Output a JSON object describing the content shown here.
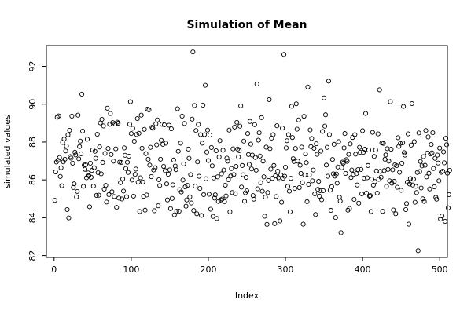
{
  "chart_data": {
    "type": "scatter",
    "title": "Simulation of Mean",
    "xlabel": "Index",
    "ylabel": "simulated values",
    "xlim": [
      -10,
      510
    ],
    "ylim": [
      81.9,
      93.1
    ],
    "x_ticks": [
      0,
      100,
      200,
      300,
      400,
      500
    ],
    "x_tick_labels": [
      "0",
      "100",
      "200",
      "300",
      "400",
      "500"
    ],
    "y_ticks": [
      82,
      84,
      86,
      88,
      90,
      92
    ],
    "y_tick_labels": [
      "82",
      "84",
      "86",
      "88",
      "90",
      "92"
    ],
    "grid": false,
    "legend": null,
    "marker": "open-circle",
    "series": [
      {
        "x_start": 1,
        "x_step": 1,
        "y": [
          84.92,
          86.42,
          86.94,
          89.31,
          87.03,
          89.38,
          87.18,
          86.18,
          86.64,
          85.69,
          87.98,
          86.95,
          88.16,
          87.09,
          87.53,
          87.79,
          84.43,
          88.38,
          83.99,
          88.62,
          87.23,
          87.15,
          89.37,
          86.88,
          85.6,
          85.79,
          87.46,
          87.32,
          85.1,
          85.39,
          89.42,
          87.11,
          87.76,
          88.05,
          87.38,
          90.53,
          88.58,
          85.66,
          86.78,
          86.56,
          86.8,
          86.11,
          88.15,
          86.37,
          86.22,
          84.58,
          86.88,
          86.14,
          86.5,
          87.58,
          85.67,
          86.64,
          87.51,
          87.14,
          85.18,
          88.41,
          86.38,
          85.19,
          87.74,
          89.01,
          86.32,
          89.2,
          86.92,
          88.85,
          85.51,
          87.4,
          85.71,
          84.83,
          89.79,
          87.66,
          85.22,
          88.94,
          89.51,
          87.34,
          85.37,
          89.03,
          86.99,
          85.12,
          88.96,
          87.64,
          84.55,
          89.05,
          88.99,
          85.04,
          86.94,
          85.85,
          86.92,
          84.99,
          86.05,
          85.41,
          87.69,
          87.3,
          86.6,
          85.11,
          86.93,
          86.39,
          87.25,
          88.94,
          90.13,
          88.45,
          85.99,
          88.73,
          85.14,
          88.04,
          86.29,
          86.57,
          88.4,
          89.24,
          85.88,
          88.46,
          84.33,
          86.11,
          89.42,
          87.67,
          85.89,
          85.13,
          88.67,
          84.4,
          87.39,
          85.2,
          89.74,
          87.09,
          89.7,
          86.78,
          87.72,
          86.17,
          88.78,
          88.73,
          86.52,
          84.37,
          86.64,
          88.96,
          87.85,
          89.17,
          84.63,
          86.01,
          85.7,
          87.09,
          88.09,
          88.94,
          87.88,
          86.71,
          88.91,
          86.49,
          87.94,
          85.79,
          84.94,
          86.3,
          88.89,
          86.53,
          84.48,
          88.7,
          85.02,
          85.74,
          87.05,
          84.15,
          86.73,
          86.54,
          84.34,
          89.76,
          87.51,
          84.34,
          85.48,
          87.94,
          85.36,
          89.37,
          85.99,
          86.84,
          88.98,
          85.63,
          84.61,
          84.94,
          85.71,
          87.63,
          87.14,
          85.1,
          86.28,
          84.78,
          89.21,
          92.76,
          84.38,
          89.93,
          85.67,
          88.61,
          84.21,
          86.95,
          88.93,
          86.19,
          85.55,
          88.39,
          84.12,
          87.94,
          89.95,
          85.22,
          88.39,
          91.0,
          86.06,
          87.47,
          88.63,
          87.02,
          85.24,
          88.37,
          84.45,
          87.71,
          86.74,
          84.07,
          86.1,
          85.04,
          85.21,
          87.54,
          83.96,
          86.16,
          84.86,
          87.21,
          88.07,
          84.94,
          86.32,
          84.99,
          87.57,
          86.52,
          84.85,
          85.72,
          85.15,
          87.15,
          86.99,
          86.01,
          88.63,
          84.31,
          86.2,
          86.6,
          85.33,
          87.64,
          86.28,
          88.79,
          85.27,
          86.71,
          89.04,
          87.63,
          87.21,
          87.55,
          88.84,
          89.91,
          85.62,
          86.76,
          86.27,
          88.05,
          84.87,
          85.32,
          86.13,
          85.42,
          88.45,
          87.34,
          86.82,
          89.09,
          87.89,
          86.58,
          87.31,
          85.17,
          84.98,
          88.92,
          87.18,
          86.51,
          91.07,
          85.53,
          88.1,
          88.49,
          87.26,
          85.85,
          89.29,
          85.4,
          86.99,
          86.16,
          84.08,
          85.09,
          87.73,
          83.65,
          85.33,
          85.97,
          90.24,
          87.65,
          86.57,
          88.21,
          86.08,
          88.39,
          86.76,
          83.69,
          86.21,
          85.12,
          88.86,
          86.46,
          86.11,
          86.04,
          83.83,
          86.26,
          84.82,
          88.74,
          86.09,
          92.63,
          86.19,
          86.67,
          87.69,
          88.07,
          85.66,
          88.39,
          85.4,
          84.31,
          86.08,
          89.89,
          88.24,
          87.12,
          86.97,
          85.55,
          87.66,
          90.02,
          88.68,
          86.99,
          89.17,
          85.59,
          86.77,
          86.34,
          87.73,
          85.85,
          83.66,
          89.36,
          86.26,
          87.37,
          86.91,
          84.85,
          90.91,
          85.76,
          86.26,
          88.64,
          87.76,
          88.19,
          85.95,
          86.52,
          87.67,
          85.26,
          84.17,
          87.91,
          87.35,
          85.5,
          85.92,
          85.14,
          85.43,
          87.52,
          84.95,
          88.56,
          85.43,
          90.33,
          88.84,
          89.44,
          86.78,
          87.72,
          86.19,
          91.22,
          88.39,
          85.46,
          84.39,
          85.64,
          87.08,
          86.32,
          87.88,
          86.2,
          84.01,
          86.31,
          85.82,
          86.68,
          88.02,
          85.09,
          84.88,
          83.21,
          86.64,
          86.94,
          86.88,
          87.69,
          88.45,
          86.34,
          87.07,
          86.98,
          84.4,
          87.35,
          84.49,
          87.9,
          86.12,
          86.52,
          88.24,
          86.29,
          84.97,
          88.39,
          87.36,
          86.33,
          85.73,
          86.54,
          84.77,
          87.72,
          87.46,
          86.55,
          85.26,
          88.6,
          87.46,
          86.09,
          87.62,
          89.51,
          85.3,
          86.11,
          86.76,
          87.58,
          85.14,
          85.17,
          84.33,
          86.04,
          88.51,
          85.72,
          87.24,
          85.91,
          87.58,
          86.47,
          85.3,
          88.43,
          86.03,
          90.76,
          86.45,
          86.14,
          87.95,
          84.34,
          87.93,
          86.49,
          87.09,
          87.32,
          85.66,
          87.65,
          86.55,
          86.99,
          85.95,
          90.13,
          87.62,
          85.82,
          86.53,
          84.41,
          85.92,
          86.8,
          84.21,
          86.75,
          85.61,
          88.23,
          87.77,
          86.4,
          87.93,
          85.45,
          86.88,
          87.96,
          89.88,
          87.44,
          87.31,
          84.43,
          84.75,
          85.88,
          88.43,
          83.66,
          85.78,
          86.07,
          87.84,
          90.03,
          85.73,
          86.04,
          88.02,
          84.82,
          85.66,
          85.33,
          86.39,
          82.26,
          88.48,
          86.44,
          86.97,
          85.57,
          86.74,
          85.0,
          87.23,
          84.86,
          86.77,
          88.61,
          86.16,
          87.42,
          88.27,
          86.35,
          85.52,
          87.37,
          87.87,
          87.43,
          88.49,
          86.6,
          85.63,
          87.14,
          85.08,
          84.98,
          87.31,
          86.89,
          85.95,
          87.68,
          83.93,
          86.4,
          84.09,
          86.46,
          87.48,
          86.9,
          83.81,
          88.2,
          87.86,
          86.35,
          84.52,
          85.22,
          86.51
        ]
      }
    ]
  }
}
